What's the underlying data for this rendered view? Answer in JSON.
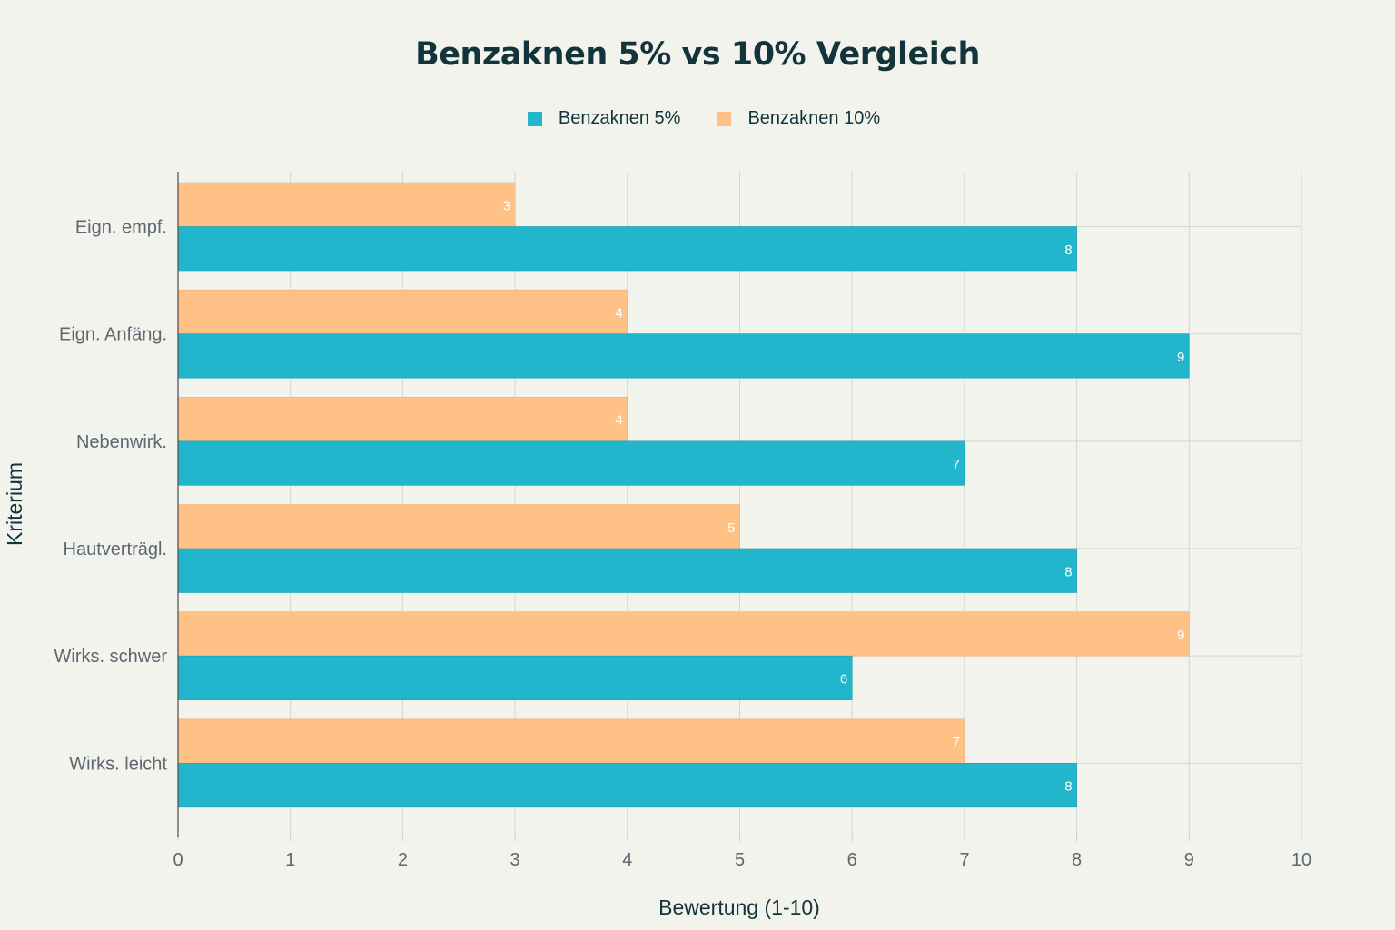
{
  "chart_data": {
    "type": "bar",
    "orientation": "horizontal",
    "title": "Benzaknen 5% vs 10% Vergleich",
    "xlabel": "Bewertung (1-10)",
    "ylabel": "Kriterium",
    "xlim": [
      0,
      10
    ],
    "x_ticks": [
      "0",
      "1",
      "2",
      "3",
      "4",
      "5",
      "6",
      "7",
      "8",
      "9",
      "10"
    ],
    "categories": [
      "Eign. empf.",
      "Eign. Anfäng.",
      "Nebenwirk.",
      "Hautverträgl.",
      "Wirks. schwer",
      "Wirks. leicht"
    ],
    "series": [
      {
        "name": "Benzaknen 5%",
        "color": "#21b6cc",
        "values": [
          8,
          9,
          7,
          8,
          6,
          8
        ]
      },
      {
        "name": "Benzaknen 10%",
        "color": "#ffc185",
        "values": [
          3,
          4,
          4,
          5,
          9,
          7
        ]
      }
    ],
    "grid": true,
    "legend_position": "top-center"
  }
}
